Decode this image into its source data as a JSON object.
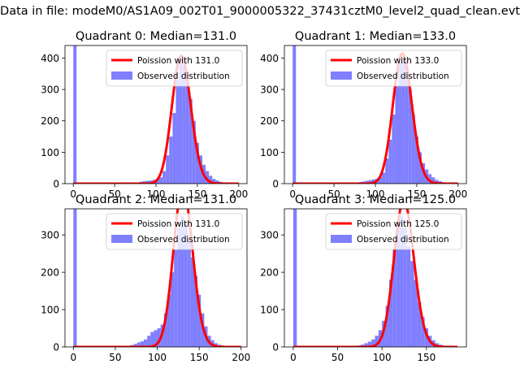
{
  "figure": {
    "suptitle": "Data in file: modeM0/AS1A09_002T01_9000005322_37431cztM0_level2_quad_clean.evt"
  },
  "chart_data": [
    {
      "type": "bar",
      "title": "Quadrant 0: Median=131.0",
      "xlim": [
        -10,
        210
      ],
      "ylim": [
        0,
        440
      ],
      "xticks": [
        0,
        50,
        100,
        150,
        200
      ],
      "yticks": [
        0,
        100,
        200,
        300,
        400
      ],
      "legend_position": "top-right",
      "grid": false,
      "series": [
        {
          "name": "Observed distribution",
          "type": "histogram",
          "color": "#7f7fff",
          "bin_edges": [
            0,
            4,
            8,
            12,
            16,
            20,
            24,
            28,
            32,
            36,
            40,
            44,
            48,
            52,
            56,
            60,
            64,
            68,
            72,
            76,
            80,
            84,
            88,
            92,
            96,
            100,
            104,
            108,
            112,
            116,
            120,
            124,
            128,
            132,
            136,
            140,
            144,
            148,
            152,
            156,
            160,
            164,
            168,
            172,
            176,
            180,
            184,
            188,
            192,
            196,
            200,
            204
          ],
          "counts": [
            460,
            0,
            0,
            0,
            0,
            0,
            0,
            0,
            0,
            0,
            0,
            0,
            0,
            0,
            0,
            0,
            1,
            2,
            3,
            4,
            6,
            8,
            9,
            10,
            12,
            15,
            20,
            40,
            90,
            150,
            225,
            330,
            400,
            380,
            360,
            270,
            200,
            130,
            90,
            60,
            40,
            25,
            15,
            10,
            6,
            4,
            3,
            2,
            1,
            1,
            0
          ]
        },
        {
          "name": "Poission with 131.0",
          "type": "line",
          "color": "#ff0000",
          "mean": 131.0,
          "x_range": [
            0,
            200
          ]
        }
      ]
    },
    {
      "type": "bar",
      "title": "Quadrant 1: Median=133.0",
      "xlim": [
        -10,
        210
      ],
      "ylim": [
        0,
        440
      ],
      "xticks": [
        0,
        50,
        100,
        150,
        200
      ],
      "yticks": [
        0,
        100,
        200,
        300,
        400
      ],
      "legend_position": "top-right",
      "grid": false,
      "series": [
        {
          "name": "Observed distribution",
          "type": "histogram",
          "color": "#7f7fff",
          "bin_edges": [
            0,
            4,
            8,
            12,
            16,
            20,
            24,
            28,
            32,
            36,
            40,
            44,
            48,
            52,
            56,
            60,
            64,
            68,
            72,
            76,
            80,
            84,
            88,
            92,
            96,
            100,
            104,
            108,
            112,
            116,
            120,
            124,
            128,
            132,
            136,
            140,
            144,
            148,
            152,
            156,
            160,
            164,
            168,
            172,
            176,
            180,
            184,
            188,
            192,
            196,
            200,
            204
          ],
          "counts": [
            460,
            0,
            0,
            0,
            0,
            0,
            0,
            0,
            0,
            0,
            0,
            0,
            0,
            0,
            0,
            0,
            1,
            1,
            2,
            3,
            5,
            7,
            9,
            11,
            13,
            16,
            22,
            35,
            80,
            140,
            220,
            310,
            390,
            400,
            370,
            300,
            220,
            150,
            100,
            65,
            45,
            30,
            20,
            12,
            8,
            5,
            3,
            2,
            1,
            1,
            0
          ]
        },
        {
          "name": "Poission with 133.0",
          "type": "line",
          "color": "#ff0000",
          "mean": 133.0,
          "x_range": [
            0,
            200
          ]
        }
      ]
    },
    {
      "type": "bar",
      "title": "Quadrant 2: Median=131.0",
      "xlim": [
        -10,
        207
      ],
      "ylim": [
        0,
        370
      ],
      "xticks": [
        0,
        50,
        100,
        150,
        200
      ],
      "yticks": [
        0,
        100,
        200,
        300
      ],
      "legend_position": "top-right",
      "grid": false,
      "series": [
        {
          "name": "Observed distribution",
          "type": "histogram",
          "color": "#7f7fff",
          "bin_edges": [
            0,
            4,
            8,
            12,
            16,
            20,
            24,
            28,
            32,
            36,
            40,
            44,
            48,
            52,
            56,
            60,
            64,
            68,
            72,
            76,
            80,
            84,
            88,
            92,
            96,
            100,
            104,
            108,
            112,
            116,
            120,
            124,
            128,
            132,
            136,
            140,
            144,
            148,
            152,
            156,
            160,
            164,
            168,
            172,
            176,
            180,
            184,
            188,
            192,
            196,
            200
          ],
          "counts": [
            400,
            0,
            0,
            0,
            0,
            0,
            0,
            0,
            0,
            0,
            0,
            0,
            0,
            0,
            0,
            0,
            2,
            5,
            8,
            12,
            15,
            20,
            30,
            40,
            45,
            50,
            60,
            90,
            140,
            200,
            260,
            320,
            350,
            330,
            290,
            240,
            190,
            140,
            90,
            55,
            30,
            18,
            10,
            6,
            4,
            2,
            1,
            1,
            0,
            0
          ]
        },
        {
          "name": "Poission with 131.0",
          "type": "line",
          "color": "#ff0000",
          "mean": 131.0,
          "x_range": [
            0,
            200
          ]
        }
      ]
    },
    {
      "type": "bar",
      "title": "Quadrant 3: Median=125.0",
      "xlim": [
        -10,
        195
      ],
      "ylim": [
        0,
        370
      ],
      "xticks": [
        0,
        50,
        100,
        150
      ],
      "yticks": [
        0,
        100,
        200,
        300
      ],
      "legend_position": "top-right",
      "grid": false,
      "series": [
        {
          "name": "Observed distribution",
          "type": "histogram",
          "color": "#7f7fff",
          "bin_edges": [
            0,
            4,
            8,
            12,
            16,
            20,
            24,
            28,
            32,
            36,
            40,
            44,
            48,
            52,
            56,
            60,
            64,
            68,
            72,
            76,
            80,
            84,
            88,
            92,
            96,
            100,
            104,
            108,
            112,
            116,
            120,
            124,
            128,
            132,
            136,
            140,
            144,
            148,
            152,
            156,
            160,
            164,
            168,
            172,
            176,
            180,
            184,
            188
          ],
          "counts": [
            400,
            0,
            0,
            0,
            0,
            0,
            0,
            0,
            0,
            0,
            0,
            0,
            0,
            0,
            0,
            0,
            1,
            2,
            4,
            6,
            10,
            14,
            20,
            30,
            45,
            70,
            110,
            180,
            260,
            330,
            350,
            320,
            270,
            230,
            180,
            120,
            80,
            50,
            30,
            18,
            10,
            6,
            3,
            2,
            1,
            0,
            0
          ]
        },
        {
          "name": "Poission with 125.0",
          "type": "line",
          "color": "#ff0000",
          "mean": 125.0,
          "x_range": [
            0,
            185
          ]
        }
      ]
    }
  ]
}
